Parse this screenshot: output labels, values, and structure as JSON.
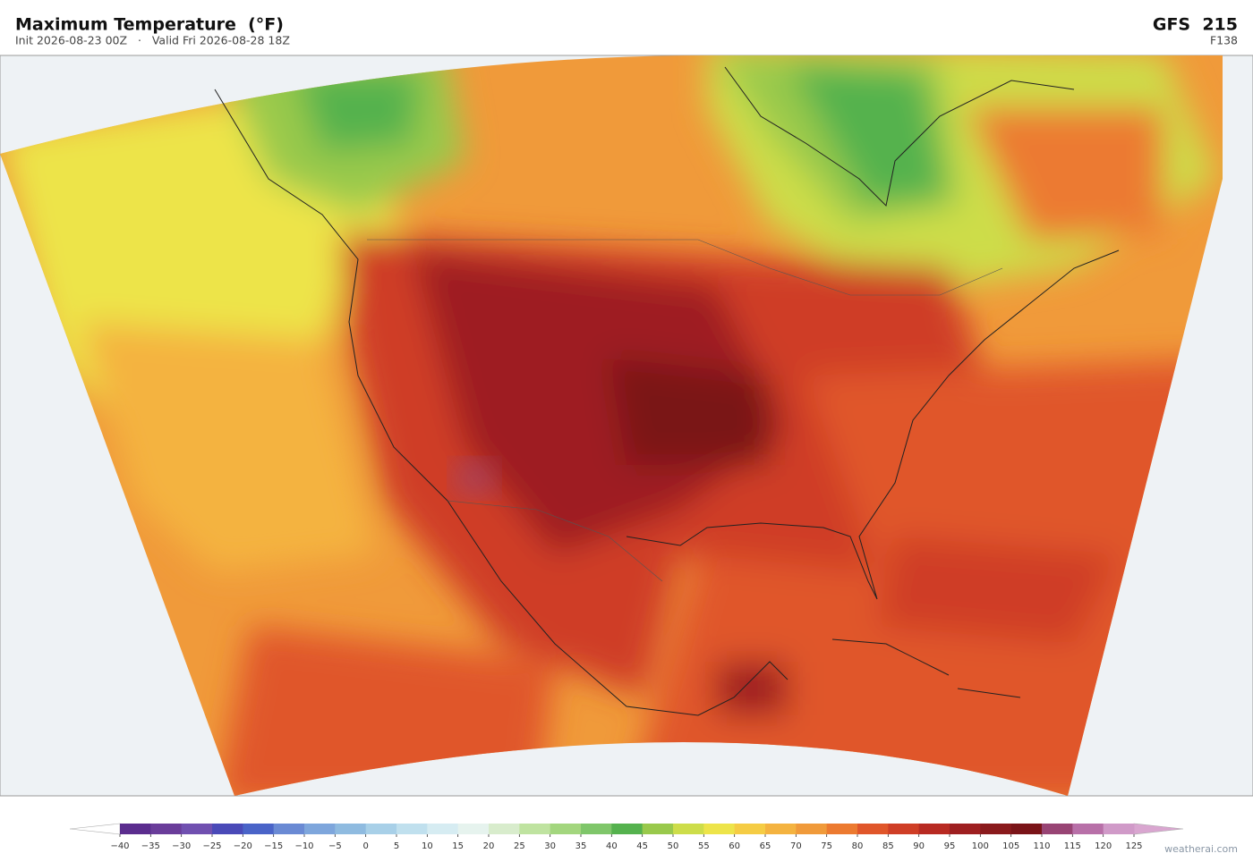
{
  "header": {
    "title": "Maximum Temperature  (°F)",
    "subtitle": "Init 2026-08-23 00Z   ·   Valid Fri 2026-08-28 18Z",
    "model": "GFS  215",
    "forecast_hour": "F138"
  },
  "colorbar": {
    "ticks": [
      {
        "value": -40,
        "label": "−40"
      },
      {
        "value": -35,
        "label": "−35"
      },
      {
        "value": -30,
        "label": "−30"
      },
      {
        "value": -25,
        "label": "−25"
      },
      {
        "value": -20,
        "label": "−20"
      },
      {
        "value": -15,
        "label": "−15"
      },
      {
        "value": -10,
        "label": "−10"
      },
      {
        "value": -5,
        "label": "−5"
      },
      0,
      5,
      10,
      15,
      20,
      25,
      30,
      35,
      40,
      45,
      50,
      55,
      60,
      65,
      70,
      75,
      80,
      85,
      90,
      95,
      100,
      105,
      110,
      115,
      120,
      125
    ],
    "colors": [
      "#5b2d8e",
      "#6a3d9a",
      "#7050b0",
      "#4a4ab8",
      "#4a64c8",
      "#6a8ad4",
      "#7ea6dc",
      "#8fbbe0",
      "#a8d0e8",
      "#c0e0ee",
      "#d6ecf2",
      "#e6f3ee",
      "#d8eccc",
      "#bfe3a0",
      "#a3d67e",
      "#7fc66a",
      "#55b24e",
      "#99c94c",
      "#cddd4a",
      "#ede44a",
      "#f5cc44",
      "#f4b340",
      "#f09a3a",
      "#ec7a30",
      "#e0562a",
      "#cf3e26",
      "#b82a22",
      "#9e1f20",
      "#8a1a1c",
      "#7a1418",
      "#984474",
      "#b870a8",
      "#d09ac8"
    ],
    "under_color": "#ffffff",
    "over_color": "#d9a6d0"
  },
  "watermark": "weatherai.com"
}
